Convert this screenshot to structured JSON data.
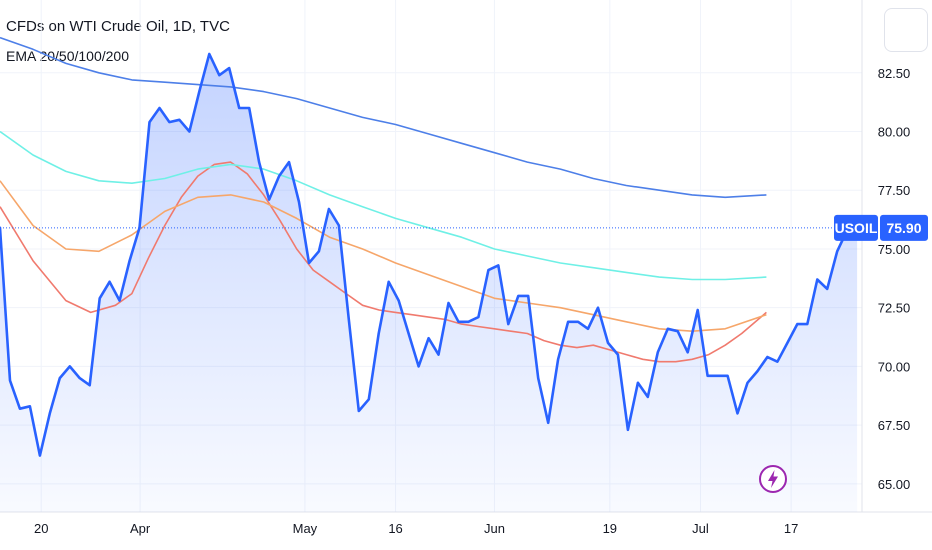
{
  "header": {
    "title": "CFDs on WTI Crude Oil, 1D, TVC",
    "indicator": "EMA 20/50/100/200"
  },
  "price_tag": {
    "symbol": "USOIL",
    "value": "75.90"
  },
  "colors": {
    "price": "#2962ff",
    "ema20": "#f07a6e",
    "ema50": "#f6a66a",
    "ema100": "#6ff0e6",
    "ema200": "#4d7fe8",
    "tag": "#2962ff",
    "bolt": "#9c27b0"
  },
  "icons": {
    "corner": "square-button-icon",
    "alert": "lightning-bolt-icon"
  },
  "chart_data": {
    "type": "line",
    "ylim": [
      63.8,
      85.6
    ],
    "y_ticks": [
      "82.50",
      "80.00",
      "77.50",
      "75.00",
      "72.50",
      "70.00",
      "67.50",
      "65.00"
    ],
    "x_ticks": [
      "20",
      "Apr",
      "May",
      "16",
      "Jun",
      "19",
      "Jul",
      "17"
    ],
    "x_tick_index": [
      2.5,
      8.5,
      18.5,
      24,
      30,
      37,
      42.5,
      48
    ],
    "x_range": [
      0,
      52.3
    ],
    "series": [
      {
        "key": "price",
        "values": [
          75.9,
          69.4,
          68.2,
          68.3,
          66.2,
          68.0,
          69.5,
          70.0,
          69.5,
          69.2,
          72.9,
          73.6,
          72.8,
          74.5,
          75.9,
          80.4,
          81.0,
          80.4,
          80.5,
          80.0,
          81.7,
          83.3,
          82.4,
          82.7,
          81.0,
          81.0,
          78.7,
          77.1,
          78.1,
          78.7,
          77.0,
          74.4,
          74.9,
          76.7,
          76.0,
          72.0,
          68.1,
          68.6,
          71.4,
          73.6,
          72.8,
          71.4,
          70.0,
          71.2,
          70.5,
          72.7,
          71.9,
          71.9,
          72.1,
          74.1,
          74.3,
          71.8,
          73.0,
          73.0,
          69.5,
          67.6,
          70.3,
          71.9,
          71.9,
          71.6,
          72.5,
          71.0,
          70.5,
          67.3,
          69.3,
          68.7,
          70.6,
          71.6,
          71.5,
          70.6,
          72.4,
          69.6,
          69.6,
          69.6,
          68.0,
          69.3,
          69.8,
          70.4,
          70.2,
          71.0,
          71.8,
          71.8,
          73.7,
          73.3,
          74.9,
          75.8,
          75.9
        ],
        "x_start": 0,
        "x_step": 0.6047
      },
      {
        "key": "ema20",
        "x": [
          0,
          2,
          4,
          5.5,
          7,
          8,
          9,
          10,
          11,
          12,
          13,
          14,
          15,
          16,
          17,
          18,
          19,
          20,
          21,
          22,
          23,
          24,
          25,
          26,
          27,
          28,
          29,
          30,
          31,
          32,
          33,
          34,
          35,
          36,
          37,
          38,
          39,
          40,
          41,
          42,
          43,
          44,
          45,
          46.5
        ],
        "values": [
          76.8,
          74.5,
          72.8,
          72.3,
          72.6,
          73.1,
          74.6,
          76.0,
          77.2,
          78.1,
          78.6,
          78.7,
          78.2,
          77.3,
          76.2,
          75.0,
          74.1,
          73.6,
          73.1,
          72.6,
          72.4,
          72.3,
          72.2,
          72.1,
          72.0,
          71.8,
          71.7,
          71.6,
          71.5,
          71.4,
          71.1,
          70.9,
          70.8,
          70.9,
          70.7,
          70.5,
          70.3,
          70.2,
          70.2,
          70.3,
          70.5,
          70.9,
          71.4,
          72.3
        ]
      },
      {
        "key": "ema50",
        "x": [
          0,
          2,
          4,
          6,
          8,
          10,
          12,
          14,
          16,
          18,
          20,
          22,
          24,
          26,
          28,
          30,
          32,
          34,
          36,
          38,
          40,
          42,
          44,
          46.5
        ],
        "values": [
          77.9,
          76.0,
          75.0,
          74.9,
          75.6,
          76.6,
          77.2,
          77.3,
          77.0,
          76.3,
          75.5,
          75.0,
          74.4,
          73.9,
          73.4,
          72.9,
          72.7,
          72.5,
          72.2,
          71.9,
          71.6,
          71.5,
          71.6,
          72.2
        ]
      },
      {
        "key": "ema100",
        "x": [
          0,
          2,
          4,
          6,
          8,
          10,
          12,
          14,
          16,
          18,
          20,
          22,
          24,
          26,
          28,
          30,
          32,
          34,
          36,
          38,
          40,
          42,
          44,
          46.5
        ],
        "values": [
          80.0,
          79.0,
          78.3,
          77.9,
          77.8,
          78.0,
          78.4,
          78.6,
          78.4,
          77.9,
          77.3,
          76.8,
          76.3,
          75.9,
          75.5,
          75.0,
          74.7,
          74.4,
          74.2,
          74.0,
          73.8,
          73.7,
          73.7,
          73.8
        ]
      },
      {
        "key": "ema200",
        "x": [
          0,
          2,
          4,
          6,
          8,
          10,
          12,
          14,
          16,
          18,
          20,
          22,
          24,
          26,
          28,
          30,
          32,
          34,
          36,
          38,
          40,
          42,
          44,
          46.5
        ],
        "values": [
          84.0,
          83.5,
          82.9,
          82.5,
          82.2,
          82.1,
          82.0,
          81.9,
          81.7,
          81.4,
          81.0,
          80.6,
          80.3,
          79.9,
          79.5,
          79.1,
          78.7,
          78.4,
          78.0,
          77.7,
          77.5,
          77.3,
          77.2,
          77.3
        ]
      }
    ]
  }
}
